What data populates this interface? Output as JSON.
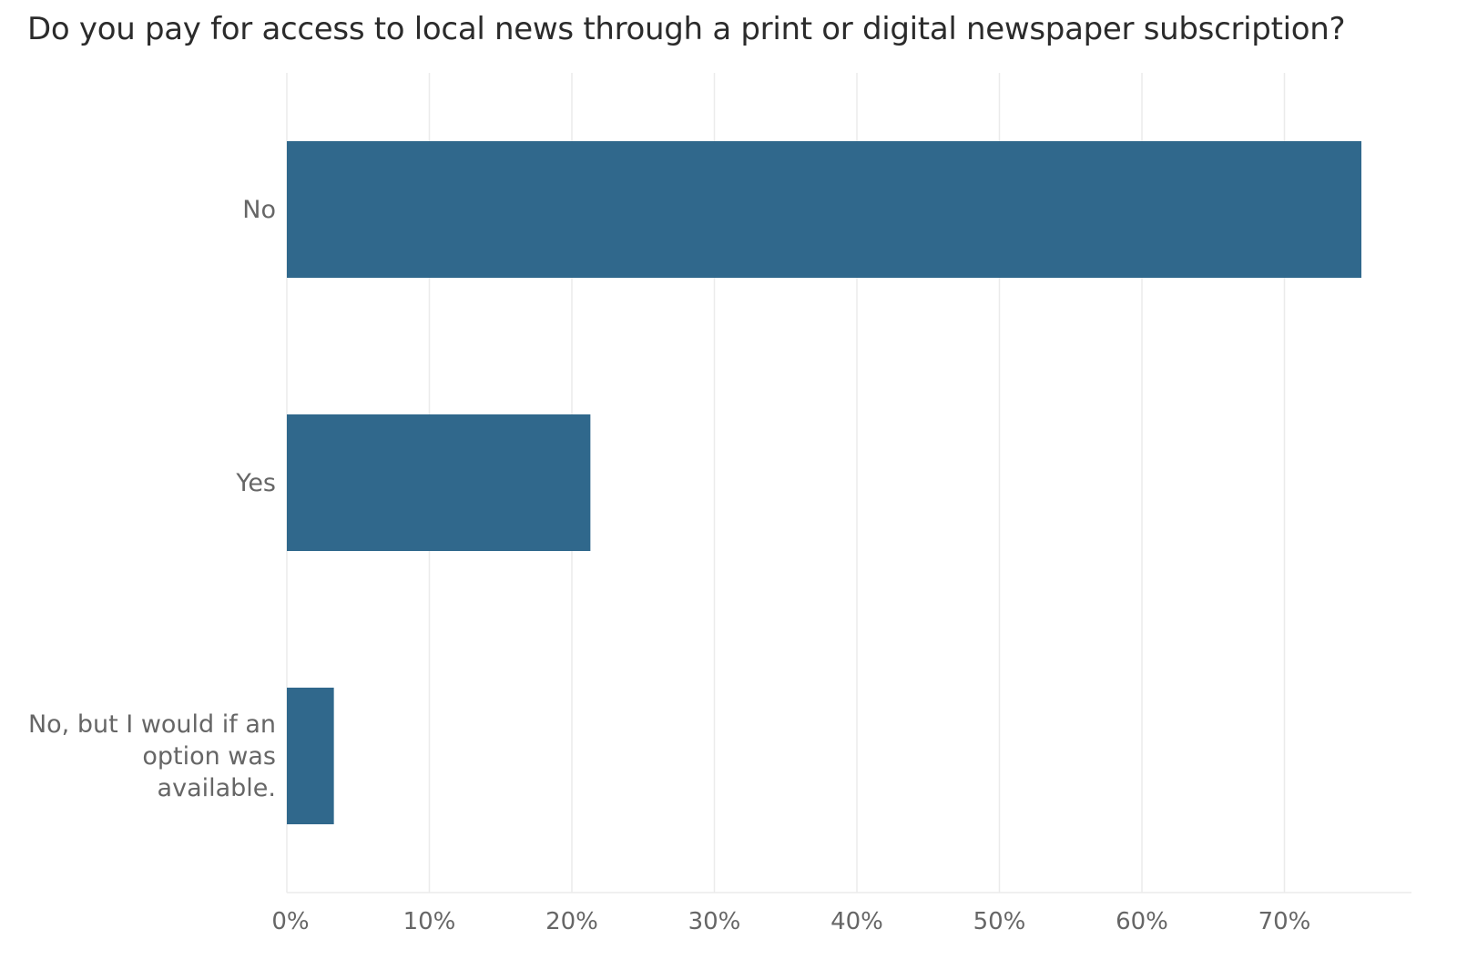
{
  "chart_data": {
    "type": "bar",
    "orientation": "horizontal",
    "title": "Do you pay for access to local news through a print or digital newspaper subscription?",
    "categories": [
      "No",
      "Yes",
      "No, but I would if an option was available."
    ],
    "category_lines": [
      [
        "No"
      ],
      [
        "Yes"
      ],
      [
        "No, but I would if an",
        "option was",
        "available."
      ]
    ],
    "values": [
      75.4,
      21.3,
      3.3
    ],
    "value_unit": "%",
    "xlim": [
      0,
      79
    ],
    "xticks": [
      0,
      10,
      20,
      30,
      40,
      50,
      60,
      70
    ],
    "xtick_labels": [
      "0%",
      "10%",
      "20%",
      "30%",
      "40%",
      "50%",
      "60%",
      "70%"
    ],
    "xlabel": "",
    "ylabel": "",
    "grid": "vertical",
    "bar_color": "#30688c",
    "grid_color": "#ebebeb"
  }
}
